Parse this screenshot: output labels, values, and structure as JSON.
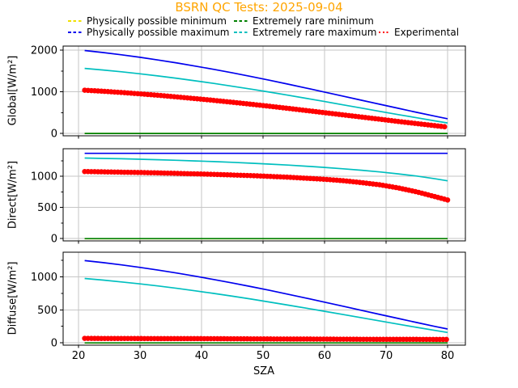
{
  "chart_data": {
    "type": "line",
    "title": "BSRN QC Tests: 2025-09-04",
    "title_color": "#ffa500",
    "xlabel": "SZA",
    "x_ticks": [
      20,
      30,
      40,
      50,
      60,
      70,
      80
    ],
    "xlim": [
      17.5,
      83
    ],
    "grid": true,
    "colors": {
      "grid": "#c6c6c6",
      "axis": "#000000",
      "background": "#ffffff"
    },
    "legend_position": "top, 3 columns, no frame",
    "legend": [
      {
        "label": "Physically possible minimum",
        "color": "#f0e000",
        "style": "dashed"
      },
      {
        "label": "Physically possible maximum",
        "color": "#0000ee",
        "style": "dashed"
      },
      {
        "label": "Extremely rare minimum",
        "color": "#008000",
        "style": "dashed"
      },
      {
        "label": "Extremely rare maximum",
        "color": "#00bfbf",
        "style": "dashed"
      },
      {
        "label": "Experimental",
        "color": "#ff0000",
        "style": "dotted"
      }
    ],
    "x": [
      21,
      24,
      27,
      30,
      33,
      36,
      39,
      42,
      45,
      48,
      51,
      54,
      57,
      60,
      63,
      66,
      69,
      72,
      75,
      78,
      80
    ],
    "subplots": [
      {
        "id": "global",
        "ylabel": "Global[W/m²]",
        "yticks": [
          0,
          1000,
          2000
        ],
        "minor_yticks": [
          500,
          1500
        ],
        "ylim": [
          -100,
          2100
        ],
        "series": [
          {
            "name": "Physically possible minimum",
            "key": "ppmin",
            "color": "#f0e000",
            "value": -4
          },
          {
            "name": "Physically possible maximum",
            "key": "ppmax",
            "color": "#0000ee",
            "values": [
              1990,
              1941,
              1887,
              1827,
              1762,
              1691,
              1616,
              1537,
              1454,
              1367,
              1277,
              1184,
              1090,
              993,
              896,
              797,
              699,
              601,
              505,
              412,
              351
            ]
          },
          {
            "name": "Extremely rare minimum",
            "key": "ermin",
            "color": "#008000",
            "value": -2
          },
          {
            "name": "Extremely rare maximum",
            "key": "ermax",
            "color": "#00bfbf",
            "values": [
              1562,
              1523,
              1479,
              1431,
              1379,
              1323,
              1263,
              1200,
              1133,
              1064,
              992,
              918,
              842,
              765,
              686,
              608,
              529,
              451,
              374,
              299,
              251
            ]
          },
          {
            "name": "Experimental",
            "key": "exp",
            "color": "#ff0000",
            "values": [
              1037,
              1011,
              982,
              949,
              914,
              876,
              835,
              792,
              747,
              700,
              652,
              602,
              550,
              498,
              445,
              392,
              339,
              286,
              234,
              184,
              151
            ]
          }
        ]
      },
      {
        "id": "direct",
        "ylabel": "Direct[W/m²]",
        "yticks": [
          0,
          500,
          1000
        ],
        "minor_yticks": [
          250,
          750,
          1250
        ],
        "ylim": [
          -45,
          1440
        ],
        "series": [
          {
            "name": "Physically possible minimum",
            "key": "ppmin",
            "color": "#f0e000",
            "value": -4
          },
          {
            "name": "Physically possible maximum",
            "key": "ppmax",
            "color": "#0000ee",
            "value": 1368
          },
          {
            "name": "Extremely rare minimum",
            "key": "ermin",
            "color": "#008000",
            "value": -2
          },
          {
            "name": "Extremely rare maximum",
            "key": "ermax",
            "color": "#00bfbf",
            "values": [
              1292,
              1286,
              1280,
              1273,
              1265,
              1256,
              1246,
              1235,
              1223,
              1209,
              1195,
              1179,
              1161,
              1141,
              1120,
              1096,
              1069,
              1038,
              1002,
              959,
              926
            ]
          },
          {
            "name": "Experimental",
            "key": "exp",
            "color": "#ff0000",
            "values": [
              1075,
              1070,
              1065,
              1060,
              1053,
              1046,
              1038,
              1030,
              1020,
              1010,
              998,
              984,
              968,
              950,
              928,
              898,
              862,
              812,
              748,
              672,
              618
            ]
          }
        ]
      },
      {
        "id": "diffuse",
        "ylabel": "Diffuse[W/m²]",
        "yticks": [
          0,
          500,
          1000
        ],
        "minor_yticks": [
          250,
          750,
          1250
        ],
        "ylim": [
          -37,
          1400
        ],
        "series": [
          {
            "name": "Physically possible minimum",
            "key": "ppmin",
            "color": "#f0e000",
            "value": -4
          },
          {
            "name": "Physically possible maximum",
            "key": "ppmax",
            "color": "#0000ee",
            "values": [
              1247,
              1216,
              1182,
              1144,
              1102,
              1058,
              1010,
              960,
              907,
              853,
              796,
              737,
              677,
              616,
              554,
              492,
              429,
              368,
              307,
              247,
              209
            ]
          },
          {
            "name": "Extremely rare minimum",
            "key": "ermin",
            "color": "#008000",
            "value": -2
          },
          {
            "name": "Extremely rare maximum",
            "key": "ermax",
            "color": "#00bfbf",
            "values": [
              975,
              951,
              923,
              893,
              861,
              826,
              788,
              749,
              707,
              664,
              619,
              572,
              525,
              477,
              428,
              379,
              330,
              281,
              233,
              186,
              156
            ]
          },
          {
            "name": "Experimental",
            "key": "exp",
            "color": "#ff0000",
            "values": [
              66,
              65,
              65,
              64,
              63,
              62,
              62,
              61,
              60,
              59,
              58,
              57,
              56,
              55,
              54,
              53,
              52,
              52,
              51,
              50,
              50
            ]
          }
        ]
      }
    ]
  }
}
